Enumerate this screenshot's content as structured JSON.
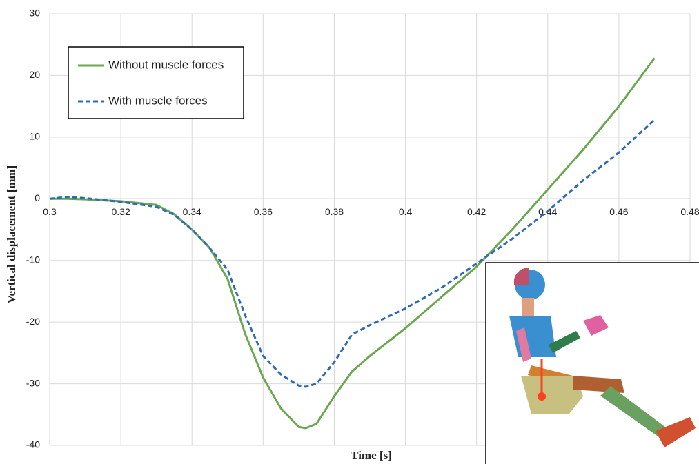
{
  "chart_data": {
    "type": "line",
    "xlabel": "Time [s]",
    "ylabel": "Vertical displacement [mm]",
    "x": [
      0.3,
      0.305,
      0.31,
      0.32,
      0.33,
      0.335,
      0.34,
      0.345,
      0.35,
      0.355,
      0.36,
      0.365,
      0.37,
      0.372,
      0.375,
      0.38,
      0.385,
      0.39,
      0.4,
      0.41,
      0.42,
      0.43,
      0.44,
      0.45,
      0.46,
      0.47
    ],
    "series": [
      {
        "name": "Without muscle forces",
        "color": "#6aa84f",
        "dash": "solid",
        "values": [
          0,
          0,
          -0.1,
          -0.4,
          -1,
          -2.5,
          -5,
          -8,
          -13,
          -22,
          -29,
          -34,
          -37,
          -37.2,
          -36.5,
          -32,
          -28,
          -25.5,
          -21,
          -16,
          -11,
          -5,
          1.5,
          8,
          15,
          22.8
        ]
      },
      {
        "name": "With muscle forces",
        "color": "#2e6bb5",
        "dash": "dashed",
        "values": [
          0,
          0.3,
          0.1,
          -0.5,
          -1.3,
          -2.6,
          -5,
          -8,
          -11.5,
          -19,
          -25.5,
          -28.5,
          -30.3,
          -30.5,
          -30,
          -26.5,
          -22,
          -20.5,
          -17.8,
          -14.5,
          -10.5,
          -6.5,
          -2,
          3,
          7.5,
          12.8
        ]
      }
    ],
    "xlim": [
      0.3,
      0.48
    ],
    "xticks": [
      0.3,
      0.32,
      0.34,
      0.36,
      0.38,
      0.4,
      0.42,
      0.44,
      0.46,
      0.48
    ],
    "ylim": [
      -40,
      30
    ],
    "yticks": [
      -40,
      -30,
      -20,
      -10,
      0,
      10,
      20,
      30
    ],
    "grid": true,
    "legend": "upper left"
  }
}
